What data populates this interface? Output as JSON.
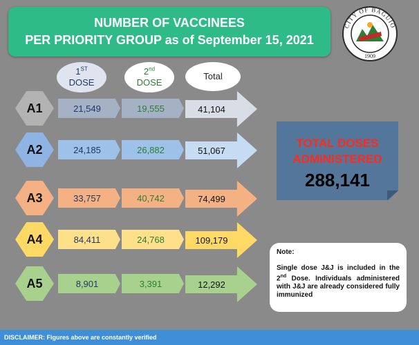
{
  "title": {
    "line1": "NUMBER OF VACCINEES",
    "line2": "PER PRIORITY GROUP as of September 15, 2021"
  },
  "seal": {
    "text": "CITY OF BAGUIO",
    "year": "1909",
    "icon": "city-seal-icon"
  },
  "headers": {
    "dose1_ordinal": "1",
    "dose1_suffix": "ST",
    "dose1_label": "DOSE",
    "dose2_ordinal": "2",
    "dose2_suffix": "nd",
    "dose2_label": "DOSE",
    "total_label": "Total"
  },
  "rows": [
    {
      "group": "A1",
      "dose1": "21,549",
      "dose2": "19,555",
      "total": "41,104"
    },
    {
      "group": "A2",
      "dose1": "24,185",
      "dose2": "26,882",
      "total": "51,067"
    },
    {
      "group": "A3",
      "dose1": "33,757",
      "dose2": "40,742",
      "total": "74,499"
    },
    {
      "group": "A4",
      "dose1": "84,411",
      "dose2": "24,768",
      "total": "109,179"
    },
    {
      "group": "A5",
      "dose1": "8,901",
      "dose2": "3,391",
      "total": "12,292"
    }
  ],
  "total_doses": {
    "line1": "TOTAL DOSES",
    "line2": "ADMINISTERED",
    "value": "288,141"
  },
  "note": {
    "title": "Note:",
    "text_before": "Single dose J&J is included in the 2",
    "text_sup": "nd",
    "text_after": " Dose. Individuals administered with J&J are already considered fully immunized"
  },
  "disclaimer": "DISCLAIMER: Figures above are constantly verified",
  "colors": {
    "background": "#8a8a8a",
    "title_bg": "#2fbb88",
    "total_box": "#53769a",
    "total_title": "#ff2a1a",
    "disclaimer_bar": "#3f8fd8",
    "row_A1": "#b3b3b3",
    "row_A2": "#8fb4e3",
    "row_A3": "#f4b183",
    "row_A4": "#ffd966",
    "row_A5": "#a9d18e"
  }
}
